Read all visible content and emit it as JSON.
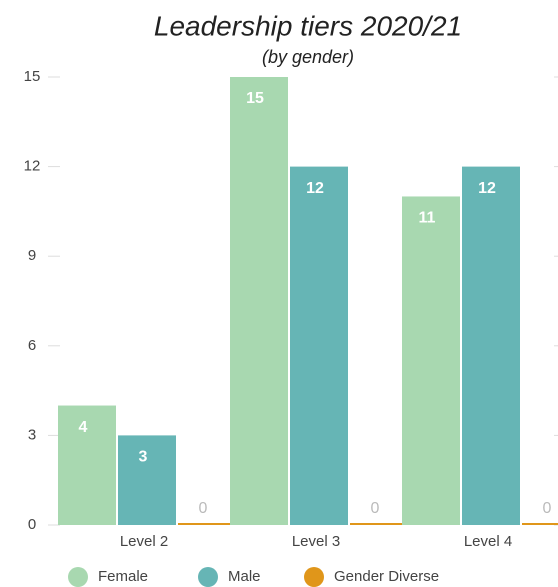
{
  "chart_data": {
    "type": "bar",
    "title": "Leadership tiers 2020/21",
    "subtitle": "(by gender)",
    "categories": [
      "Level 2",
      "Level 3",
      "Level 4"
    ],
    "series": [
      {
        "name": "Female",
        "color": "#a8d8b0",
        "values": [
          4,
          15,
          11
        ]
      },
      {
        "name": "Male",
        "color": "#66b5b5",
        "values": [
          3,
          12,
          12
        ]
      },
      {
        "name": "Gender Diverse",
        "color": "#e0961a",
        "values": [
          0,
          0,
          0
        ]
      }
    ],
    "ylim": [
      0,
      15
    ],
    "yticks": [
      0,
      3,
      6,
      9,
      12,
      15
    ],
    "legend": "bottom"
  }
}
